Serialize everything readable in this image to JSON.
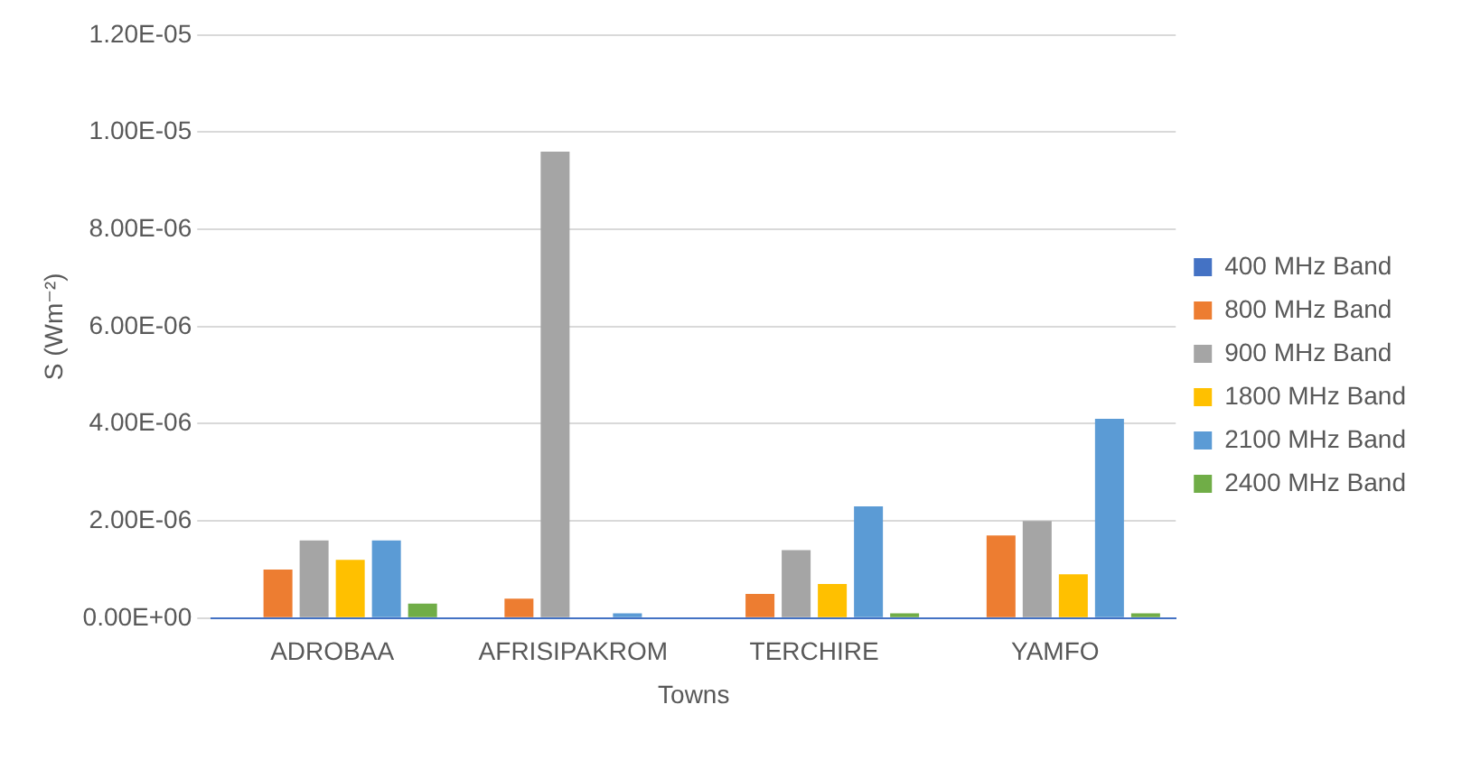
{
  "chart_data": {
    "type": "bar",
    "xlabel": "Towns",
    "ylabel": "S (Wm⁻²)",
    "categories": [
      "ADROBAA",
      "AFRISIPAKROM",
      "TERCHIRE",
      "YAMFO"
    ],
    "series": [
      {
        "name": "400 MHz Band",
        "color": "#4472c4",
        "values": [
          0,
          0,
          0,
          0
        ]
      },
      {
        "name": "800 MHz Band",
        "color": "#ed7d31",
        "values": [
          1e-06,
          4e-07,
          5e-07,
          1.7e-06
        ]
      },
      {
        "name": "900 MHz Band",
        "color": "#a5a5a5",
        "values": [
          1.6e-06,
          9.6e-06,
          1.4e-06,
          2e-06
        ]
      },
      {
        "name": "1800 MHz Band",
        "color": "#ffc000",
        "values": [
          1.2e-06,
          0,
          7e-07,
          9e-07
        ]
      },
      {
        "name": "2100 MHz Band",
        "color": "#5b9bd5",
        "values": [
          1.6e-06,
          1e-07,
          2.3e-06,
          4.1e-06
        ]
      },
      {
        "name": "2400 MHz Band",
        "color": "#70ad47",
        "values": [
          3e-07,
          0,
          1e-07,
          1e-07
        ]
      }
    ],
    "ylim": [
      0,
      1.2e-05
    ],
    "yticks": [
      {
        "value": 0,
        "label": "0.00E+00"
      },
      {
        "value": 2e-06,
        "label": "2.00E-06"
      },
      {
        "value": 4e-06,
        "label": "4.00E-06"
      },
      {
        "value": 6e-06,
        "label": "6.00E-06"
      },
      {
        "value": 8e-06,
        "label": "8.00E-06"
      },
      {
        "value": 1e-05,
        "label": "1.00E-05"
      },
      {
        "value": 1.2e-05,
        "label": "1.20E-05"
      }
    ],
    "grid": "y",
    "legend": "right"
  }
}
